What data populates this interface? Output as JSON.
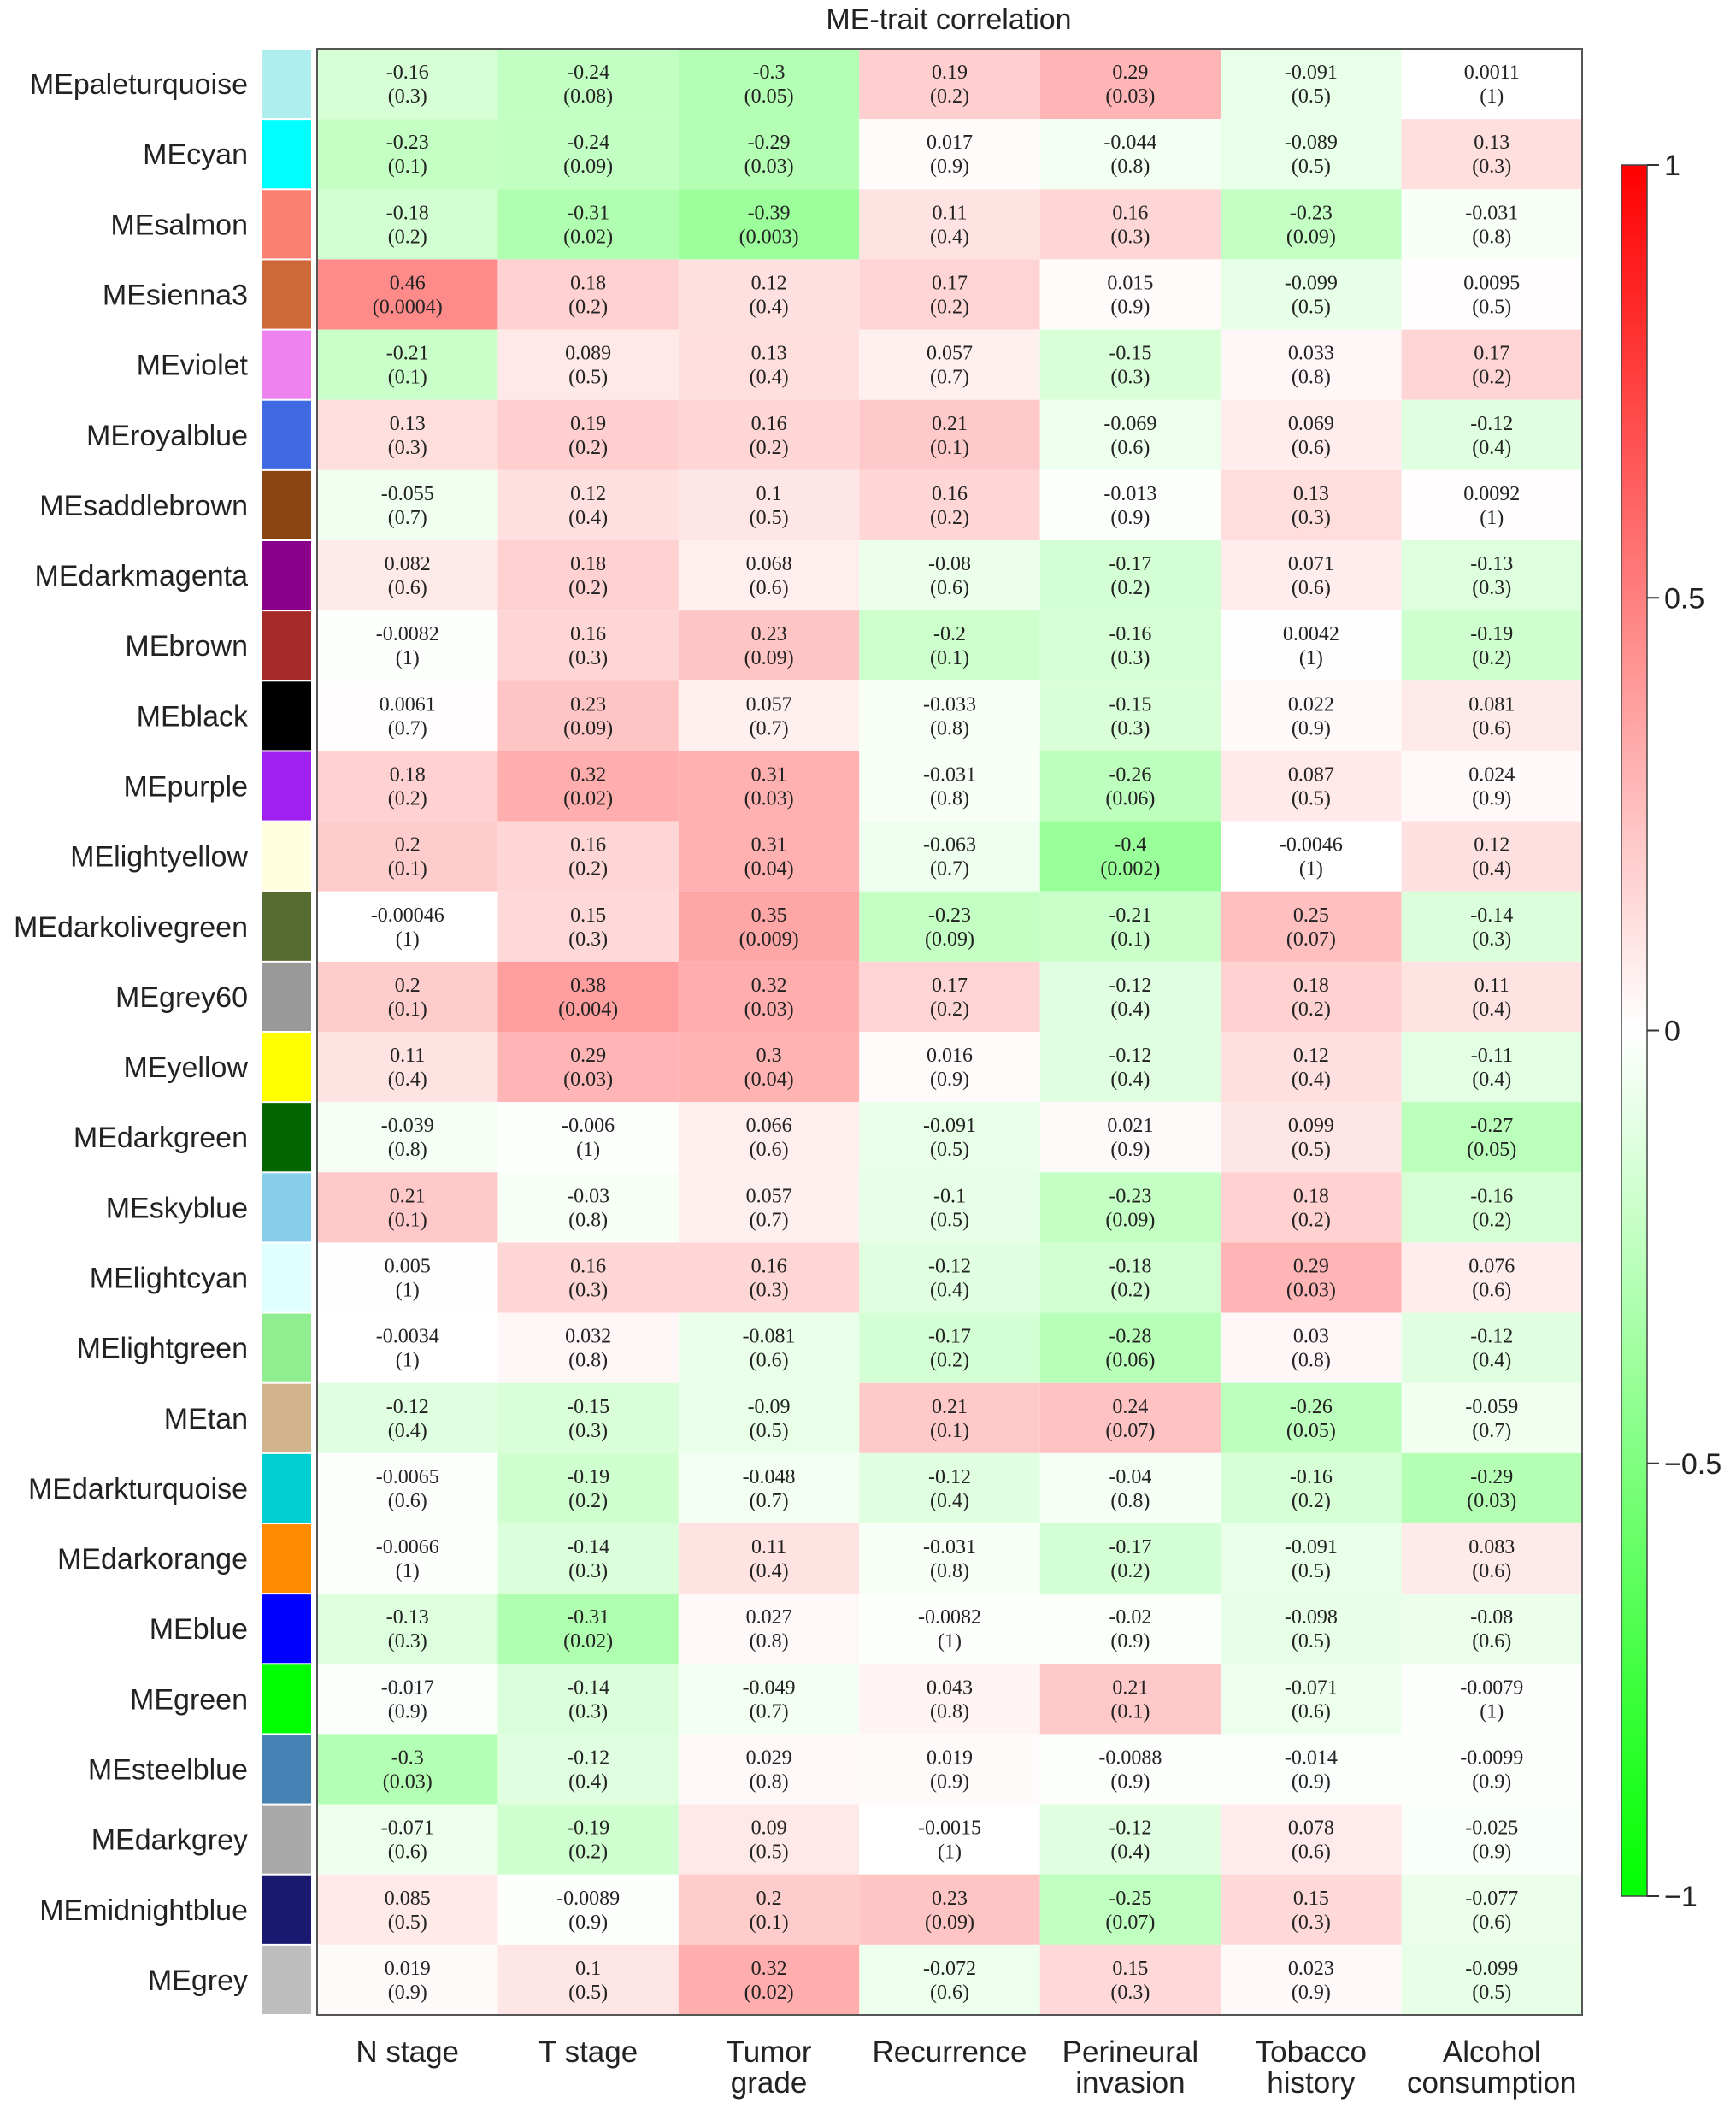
{
  "chart_data": {
    "type": "heatmap",
    "title": "ME-trait correlation",
    "columns": [
      "N stage",
      "T stage",
      "Tumor grade",
      "Recurrence",
      "Perineural invasion",
      "Tobacco history",
      "Alcohol consumption"
    ],
    "column_lines": [
      [
        "N stage"
      ],
      [
        "T stage"
      ],
      [
        "Tumor",
        "grade"
      ],
      [
        "Recurrence"
      ],
      [
        "Perineural",
        "invasion"
      ],
      [
        "Tobacco",
        "history"
      ],
      [
        "Alcohol",
        "consumption"
      ]
    ],
    "rows": [
      {
        "module": "MEpaleturquoise",
        "color": "#AFEEEE",
        "r": [
          "-0.16",
          "-0.24",
          "-0.3",
          "0.19",
          "0.29",
          "-0.091",
          "0.0011"
        ],
        "p": [
          "(0.3)",
          "(0.08)",
          "(0.05)",
          "(0.2)",
          "(0.03)",
          "(0.5)",
          "(1)"
        ]
      },
      {
        "module": "MEcyan",
        "color": "#00FFFF",
        "r": [
          "-0.23",
          "-0.24",
          "-0.29",
          "0.017",
          "-0.044",
          "-0.089",
          "0.13"
        ],
        "p": [
          "(0.1)",
          "(0.09)",
          "(0.03)",
          "(0.9)",
          "(0.8)",
          "(0.5)",
          "(0.3)"
        ]
      },
      {
        "module": "MEsalmon",
        "color": "#FA8072",
        "r": [
          "-0.18",
          "-0.31",
          "-0.39",
          "0.11",
          "0.16",
          "-0.23",
          "-0.031"
        ],
        "p": [
          "(0.2)",
          "(0.02)",
          "(0.003)",
          "(0.4)",
          "(0.3)",
          "(0.09)",
          "(0.8)"
        ]
      },
      {
        "module": "MEsienna3",
        "color": "#CD6839",
        "r": [
          "0.46",
          "0.18",
          "0.12",
          "0.17",
          "0.015",
          "-0.099",
          "0.0095"
        ],
        "p": [
          "(0.0004)",
          "(0.2)",
          "(0.4)",
          "(0.2)",
          "(0.9)",
          "(0.5)",
          "(0.5)"
        ]
      },
      {
        "module": "MEviolet",
        "color": "#EE82EE",
        "r": [
          "-0.21",
          "0.089",
          "0.13",
          "0.057",
          "-0.15",
          "0.033",
          "0.17"
        ],
        "p": [
          "(0.1)",
          "(0.5)",
          "(0.4)",
          "(0.7)",
          "(0.3)",
          "(0.8)",
          "(0.2)"
        ]
      },
      {
        "module": "MEroyalblue",
        "color": "#4169E1",
        "r": [
          "0.13",
          "0.19",
          "0.16",
          "0.21",
          "-0.069",
          "0.069",
          "-0.12"
        ],
        "p": [
          "(0.3)",
          "(0.2)",
          "(0.2)",
          "(0.1)",
          "(0.6)",
          "(0.6)",
          "(0.4)"
        ]
      },
      {
        "module": "MEsaddlebrown",
        "color": "#8B4513",
        "r": [
          "-0.055",
          "0.12",
          "0.1",
          "0.16",
          "-0.013",
          "0.13",
          "0.0092"
        ],
        "p": [
          "(0.7)",
          "(0.4)",
          "(0.5)",
          "(0.2)",
          "(0.9)",
          "(0.3)",
          "(1)"
        ]
      },
      {
        "module": "MEdarkmagenta",
        "color": "#8B008B",
        "r": [
          "0.082",
          "0.18",
          "0.068",
          "-0.08",
          "-0.17",
          "0.071",
          "-0.13"
        ],
        "p": [
          "(0.6)",
          "(0.2)",
          "(0.6)",
          "(0.6)",
          "(0.2)",
          "(0.6)",
          "(0.3)"
        ]
      },
      {
        "module": "MEbrown",
        "color": "#A52A2A",
        "r": [
          "-0.0082",
          "0.16",
          "0.23",
          "-0.2",
          "-0.16",
          "0.0042",
          "-0.19"
        ],
        "p": [
          "(1)",
          "(0.3)",
          "(0.09)",
          "(0.1)",
          "(0.3)",
          "(1)",
          "(0.2)"
        ]
      },
      {
        "module": "MEblack",
        "color": "#000000",
        "r": [
          "0.0061",
          "0.23",
          "0.057",
          "-0.033",
          "-0.15",
          "0.022",
          "0.081"
        ],
        "p": [
          "(0.7)",
          "(0.09)",
          "(0.7)",
          "(0.8)",
          "(0.3)",
          "(0.9)",
          "(0.6)"
        ]
      },
      {
        "module": "MEpurple",
        "color": "#A020F0",
        "r": [
          "0.18",
          "0.32",
          "0.31",
          "-0.031",
          "-0.26",
          "0.087",
          "0.024"
        ],
        "p": [
          "(0.2)",
          "(0.02)",
          "(0.03)",
          "(0.8)",
          "(0.06)",
          "(0.5)",
          "(0.9)"
        ]
      },
      {
        "module": "MElightyellow",
        "color": "#FFFFE0",
        "r": [
          "0.2",
          "0.16",
          "0.31",
          "-0.063",
          "-0.4",
          "-0.0046",
          "0.12"
        ],
        "p": [
          "(0.1)",
          "(0.2)",
          "(0.04)",
          "(0.7)",
          "(0.002)",
          "(1)",
          "(0.4)"
        ]
      },
      {
        "module": "MEdarkolivegreen",
        "color": "#556B2F",
        "r": [
          "-0.00046",
          "0.15",
          "0.35",
          "-0.23",
          "-0.21",
          "0.25",
          "-0.14"
        ],
        "p": [
          "(1)",
          "(0.3)",
          "(0.009)",
          "(0.09)",
          "(0.1)",
          "(0.07)",
          "(0.3)"
        ]
      },
      {
        "module": "MEgrey60",
        "color": "#999999",
        "r": [
          "0.2",
          "0.38",
          "0.32",
          "0.17",
          "-0.12",
          "0.18",
          "0.11"
        ],
        "p": [
          "(0.1)",
          "(0.004)",
          "(0.03)",
          "(0.2)",
          "(0.4)",
          "(0.2)",
          "(0.4)"
        ]
      },
      {
        "module": "MEyellow",
        "color": "#FFFF00",
        "r": [
          "0.11",
          "0.29",
          "0.3",
          "0.016",
          "-0.12",
          "0.12",
          "-0.11"
        ],
        "p": [
          "(0.4)",
          "(0.03)",
          "(0.04)",
          "(0.9)",
          "(0.4)",
          "(0.4)",
          "(0.4)"
        ]
      },
      {
        "module": "MEdarkgreen",
        "color": "#006400",
        "r": [
          "-0.039",
          "-0.006",
          "0.066",
          "-0.091",
          "0.021",
          "0.099",
          "-0.27"
        ],
        "p": [
          "(0.8)",
          "(1)",
          "(0.6)",
          "(0.5)",
          "(0.9)",
          "(0.5)",
          "(0.05)"
        ]
      },
      {
        "module": "MEskyblue",
        "color": "#87CEEB",
        "r": [
          "0.21",
          "-0.03",
          "0.057",
          "-0.1",
          "-0.23",
          "0.18",
          "-0.16"
        ],
        "p": [
          "(0.1)",
          "(0.8)",
          "(0.7)",
          "(0.5)",
          "(0.09)",
          "(0.2)",
          "(0.2)"
        ]
      },
      {
        "module": "MElightcyan",
        "color": "#E0FFFF",
        "r": [
          "0.005",
          "0.16",
          "0.16",
          "-0.12",
          "-0.18",
          "0.29",
          "0.076"
        ],
        "p": [
          "(1)",
          "(0.3)",
          "(0.3)",
          "(0.4)",
          "(0.2)",
          "(0.03)",
          "(0.6)"
        ]
      },
      {
        "module": "MElightgreen",
        "color": "#90EE90",
        "r": [
          "-0.0034",
          "0.032",
          "-0.081",
          "-0.17",
          "-0.28",
          "0.03",
          "-0.12"
        ],
        "p": [
          "(1)",
          "(0.8)",
          "(0.6)",
          "(0.2)",
          "(0.06)",
          "(0.8)",
          "(0.4)"
        ]
      },
      {
        "module": "MEtan",
        "color": "#D2B48C",
        "r": [
          "-0.12",
          "-0.15",
          "-0.09",
          "0.21",
          "0.24",
          "-0.26",
          "-0.059"
        ],
        "p": [
          "(0.4)",
          "(0.3)",
          "(0.5)",
          "(0.1)",
          "(0.07)",
          "(0.05)",
          "(0.7)"
        ]
      },
      {
        "module": "MEdarkturquoise",
        "color": "#00CED1",
        "r": [
          "-0.0065",
          "-0.19",
          "-0.048",
          "-0.12",
          "-0.04",
          "-0.16",
          "-0.29"
        ],
        "p": [
          "(0.6)",
          "(0.2)",
          "(0.7)",
          "(0.4)",
          "(0.8)",
          "(0.2)",
          "(0.03)"
        ]
      },
      {
        "module": "MEdarkorange",
        "color": "#FF8C00",
        "r": [
          "-0.0066",
          "-0.14",
          "0.11",
          "-0.031",
          "-0.17",
          "-0.091",
          "0.083"
        ],
        "p": [
          "(1)",
          "(0.3)",
          "(0.4)",
          "(0.8)",
          "(0.2)",
          "(0.5)",
          "(0.6)"
        ]
      },
      {
        "module": "MEblue",
        "color": "#0000FF",
        "r": [
          "-0.13",
          "-0.31",
          "0.027",
          "-0.0082",
          "-0.02",
          "-0.098",
          "-0.08"
        ],
        "p": [
          "(0.3)",
          "(0.02)",
          "(0.8)",
          "(1)",
          "(0.9)",
          "(0.5)",
          "(0.6)"
        ]
      },
      {
        "module": "MEgreen",
        "color": "#00FF00",
        "r": [
          "-0.017",
          "-0.14",
          "-0.049",
          "0.043",
          "0.21",
          "-0.071",
          "-0.0079"
        ],
        "p": [
          "(0.9)",
          "(0.3)",
          "(0.7)",
          "(0.8)",
          "(0.1)",
          "(0.6)",
          "(1)"
        ]
      },
      {
        "module": "MEsteelblue",
        "color": "#4682B4",
        "r": [
          "-0.3",
          "-0.12",
          "0.029",
          "0.019",
          "-0.0088",
          "-0.014",
          "-0.0099"
        ],
        "p": [
          "(0.03)",
          "(0.4)",
          "(0.8)",
          "(0.9)",
          "(0.9)",
          "(0.9)",
          "(0.9)"
        ]
      },
      {
        "module": "MEdarkgrey",
        "color": "#A9A9A9",
        "r": [
          "-0.071",
          "-0.19",
          "0.09",
          "-0.0015",
          "-0.12",
          "0.078",
          "-0.025"
        ],
        "p": [
          "(0.6)",
          "(0.2)",
          "(0.5)",
          "(1)",
          "(0.4)",
          "(0.6)",
          "(0.9)"
        ]
      },
      {
        "module": "MEmidnightblue",
        "color": "#191970",
        "r": [
          "0.085",
          "-0.0089",
          "0.2",
          "0.23",
          "-0.25",
          "0.15",
          "-0.077"
        ],
        "p": [
          "(0.5)",
          "(0.9)",
          "(0.1)",
          "(0.09)",
          "(0.07)",
          "(0.3)",
          "(0.6)"
        ]
      },
      {
        "module": "MEgrey",
        "color": "#BEBEBE",
        "r": [
          "0.019",
          "0.1",
          "0.32",
          "-0.072",
          "0.15",
          "0.023",
          "-0.099"
        ],
        "p": [
          "(0.9)",
          "(0.5)",
          "(0.02)",
          "(0.6)",
          "(0.3)",
          "(0.9)",
          "(0.5)"
        ]
      }
    ],
    "color_scale": {
      "min": -1,
      "max": 1,
      "low_color": "#00FF00",
      "mid_color": "#FFFFFF",
      "high_color": "#FF0000",
      "ticks": [
        {
          "value": 1,
          "label": "1"
        },
        {
          "value": 0.5,
          "label": "0.5"
        },
        {
          "value": 0,
          "label": "0"
        },
        {
          "value": -0.5,
          "label": "−0.5"
        },
        {
          "value": -1,
          "label": "−1"
        }
      ]
    }
  }
}
